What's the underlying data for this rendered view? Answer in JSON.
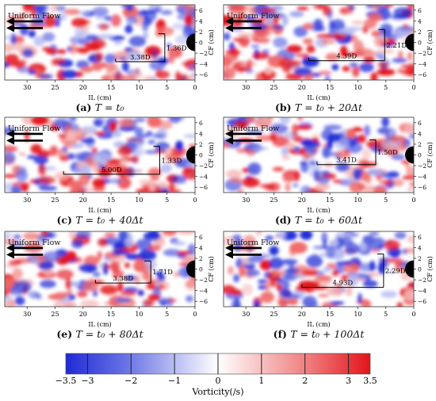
{
  "figure": {
    "panels": [
      {
        "id": "a",
        "label": "(a)",
        "caption": "T = t₀",
        "flow_label": "Uniform Flow",
        "box_from_il": 14.2,
        "box_to_il": 5.4,
        "box_top_cf": 1.6,
        "box_bottom_cf": -3.6,
        "horiz_label": "3.38D",
        "vert_label": "1.36D"
      },
      {
        "id": "b",
        "label": "(b)",
        "caption": "T = t₀ + 20Δt",
        "flow_label": "Uniform Flow",
        "box_from_il": 18.8,
        "box_to_il": 5.2,
        "box_top_cf": 2.4,
        "box_bottom_cf": -3.4,
        "horiz_label": "4.39D",
        "vert_label": "2.21D"
      },
      {
        "id": "c",
        "label": "(c)",
        "caption": "T = t₀ + 40Δt",
        "flow_label": "Uniform Flow",
        "box_from_il": 23.5,
        "box_to_il": 6.3,
        "box_top_cf": 1.6,
        "box_bottom_cf": -3.6,
        "horiz_label": "5.00D",
        "vert_label": "1.33D"
      },
      {
        "id": "d",
        "label": "(d)",
        "caption": "T = t₀ + 60Δt",
        "flow_label": "Uniform Flow",
        "box_from_il": 17.3,
        "box_to_il": 6.8,
        "box_top_cf": 2.8,
        "box_bottom_cf": -1.8,
        "horiz_label": "3.41D",
        "vert_label": "1.50D"
      },
      {
        "id": "e",
        "label": "(e)",
        "caption": "T = t₀ + 80Δt",
        "flow_label": "Uniform Flow",
        "box_from_il": 17.8,
        "box_to_il": 7.9,
        "box_top_cf": 1.5,
        "box_bottom_cf": -2.6,
        "horiz_label": "3.38D",
        "vert_label": "1.71D"
      },
      {
        "id": "f",
        "label": "(f)",
        "caption": "T = t₀ + 100Δt",
        "flow_label": "Uniform Flow",
        "box_from_il": 20.0,
        "box_to_il": 5.4,
        "box_top_cf": 2.8,
        "box_bottom_cf": -3.4,
        "horiz_label": "4.93D",
        "vert_label": "2.29D"
      }
    ],
    "axes": {
      "x_label": "IL (cm)",
      "y_label": "CF (cm)",
      "x_ticks": [
        "30",
        "25",
        "20",
        "15",
        "10",
        "5",
        "0"
      ],
      "y_ticks": [
        "6",
        "4",
        "2",
        "0",
        "−2",
        "−4",
        "−6"
      ],
      "x_range": [
        34,
        0
      ],
      "y_range": [
        -7,
        7
      ]
    },
    "colorbar": {
      "label": "Vorticity(/s)",
      "ticks": [
        "−3.5",
        "−3",
        "−2",
        "−1",
        "0",
        "1",
        "2",
        "3",
        "3.5"
      ],
      "range": [
        -3.5,
        3.5
      ],
      "colors": {
        "negative": "#1f2bd6",
        "positive": "#e3141c",
        "zero": "#ffffff"
      }
    }
  }
}
